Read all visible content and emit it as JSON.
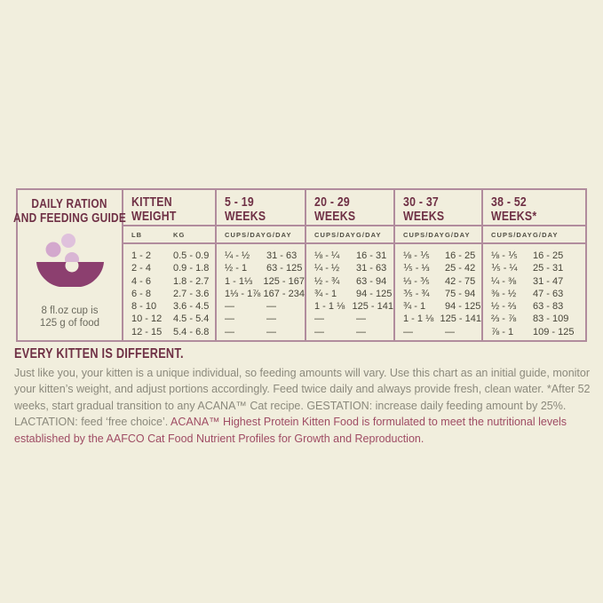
{
  "page": {
    "background": "#f1eedd",
    "border_color": "#b18c9d",
    "title_color": "#6f3045"
  },
  "table": {
    "left_panel": {
      "title_line1": "DAILY RATION",
      "title_line2": "AND FEEDING GUIDE",
      "caption_line1": "8 fl.oz cup is",
      "caption_line2": "125 g of food",
      "bowl_color": "#8c3f6f",
      "bubble_color_light": "#dfc1dc",
      "bubble_color_dark": "#d3a8cd"
    },
    "columns": [
      {
        "title_line1": "KITTEN",
        "title_line2": "WEIGHT",
        "sub1": "LB",
        "sub2": "KG",
        "rows": [
          [
            "1 - 2",
            "0.5 - 0.9"
          ],
          [
            "2 - 4",
            "0.9 - 1.8"
          ],
          [
            "4 - 6",
            "1.8 - 2.7"
          ],
          [
            "6 - 8",
            "2.7 - 3.6"
          ],
          [
            "8 - 10",
            "3.6 - 4.5"
          ],
          [
            "10 - 12",
            "4.5 - 5.4"
          ],
          [
            "12 - 15",
            "5.4 - 6.8"
          ]
        ]
      },
      {
        "title_line1": "5 - 19",
        "title_line2": "WEEKS",
        "sub1": "CUPS/DAY",
        "sub2": "G/DAY",
        "rows": [
          [
            "¼ - ½",
            "31 - 63"
          ],
          [
            "½ - 1",
            "63 - 125"
          ],
          [
            "1 - 1⅓",
            "125 - 167"
          ],
          [
            "1⅓ - 1⅞",
            "167 - 234"
          ],
          [
            "—",
            "—"
          ],
          [
            "—",
            "—"
          ],
          [
            "—",
            "—"
          ]
        ]
      },
      {
        "title_line1": "20 - 29",
        "title_line2": "WEEKS",
        "sub1": "CUPS/DAY",
        "sub2": "G/DAY",
        "rows": [
          [
            "⅛ - ¼",
            "16 - 31"
          ],
          [
            "¼ - ½",
            "31 - 63"
          ],
          [
            "½ - ¾",
            "63 - 94"
          ],
          [
            "¾ - 1",
            "94 - 125"
          ],
          [
            "1 - 1 ⅛",
            "125 - 141"
          ],
          [
            "—",
            "—"
          ],
          [
            "—",
            "—"
          ]
        ]
      },
      {
        "title_line1": "30 - 37",
        "title_line2": "WEEKS",
        "sub1": "CUPS/DAY",
        "sub2": "G/DAY",
        "rows": [
          [
            "⅛ - ⅕",
            "16 - 25"
          ],
          [
            "⅕ - ⅓",
            "25 - 42"
          ],
          [
            "⅓ - ⅗",
            "42 - 75"
          ],
          [
            "⅗ - ¾",
            "75 - 94"
          ],
          [
            "¾ - 1",
            "94 - 125"
          ],
          [
            "1 - 1 ⅛",
            "125 - 141"
          ],
          [
            "—",
            "—"
          ]
        ]
      },
      {
        "title_line1": "38 - 52",
        "title_line2": "WEEKS*",
        "sub1": "CUPS/DAY",
        "sub2": "G/DAY",
        "rows": [
          [
            "⅛ - ⅕",
            "16 - 25"
          ],
          [
            "⅕ - ¼",
            "25 - 31"
          ],
          [
            "¼ - ⅜",
            "31 - 47"
          ],
          [
            "⅜ - ½",
            "47 - 63"
          ],
          [
            "½ - ⅔",
            "63 - 83"
          ],
          [
            "⅔ - ⅞",
            "83 - 109"
          ],
          [
            "⅞ - 1",
            "109 - 125"
          ]
        ]
      }
    ]
  },
  "footer": {
    "heading": "EVERY KITTEN IS DIFFERENT.",
    "body_gray": "Just like you, your kitten is a unique individual, so feeding amounts will vary. Use this chart as an initial guide, monitor your kitten’s weight, and adjust portions accordingly. Feed twice daily and always provide fresh, clean water. *After 52 weeks, start gradual transition to any ACANA™ Cat recipe. GESTATION: increase daily feeding amount by 25%. LACTATION: feed ‘free choice’. ",
    "body_maroon": "ACANA™ Highest Protein Kitten Food is formulated to meet the nutritional levels established by the AAFCO Cat Food Nutrient Profiles for Growth and Reproduction."
  }
}
